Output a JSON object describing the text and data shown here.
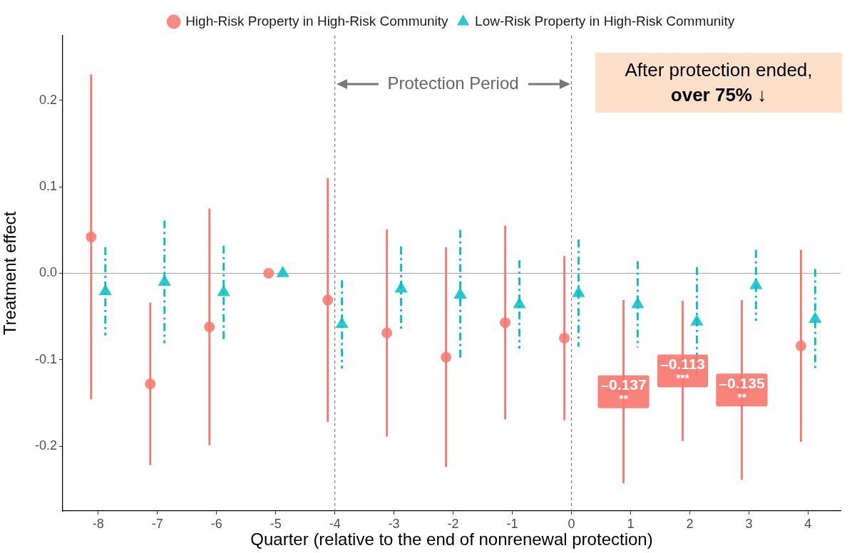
{
  "chart_data": {
    "type": "scatter",
    "xlabel": "Quarter (relative to the end of nonrenewal protection)",
    "ylabel": "Treatment effect",
    "xlim": [
      -8.6,
      4.55
    ],
    "xticks": [
      -8,
      -7,
      -6,
      -5,
      -4,
      -3,
      -2,
      -1,
      0,
      1,
      2,
      3,
      4
    ],
    "ylim": [
      -0.275,
      0.275
    ],
    "yticks": [
      -0.2,
      -0.1,
      {
        "value": 0,
        "label": "0.0"
      },
      0.1,
      0.2
    ],
    "series": [
      {
        "name": "High-Risk Property in High-Risk Community",
        "color": "#f8766d",
        "marker": "circle",
        "line_style": "solid",
        "x": [
          -8.12,
          -7.12,
          -6.12,
          -5.12,
          -4.12,
          -3.12,
          -2.12,
          -1.12,
          -0.12,
          0.88,
          1.88,
          2.88,
          3.88
        ],
        "values": [
          0.042,
          -0.128,
          -0.062,
          0,
          -0.031,
          -0.069,
          -0.097,
          -0.057,
          -0.075,
          -0.137,
          -0.113,
          -0.135,
          -0.084
        ],
        "errors": [
          0.188,
          0.094,
          0.137,
          null,
          0.141,
          0.12,
          0.127,
          0.112,
          0.095,
          0.106,
          0.081,
          0.104,
          0.111
        ],
        "value_labels": [
          null,
          null,
          null,
          null,
          null,
          null,
          null,
          null,
          null,
          "–0.137\n**",
          "–0.113\n***",
          "–0.135\n**",
          null
        ]
      },
      {
        "name": "Low-Risk Property in High-Risk Community",
        "color": "#00bfc4",
        "marker": "triangle",
        "line_style": "dashed",
        "x": [
          -7.88,
          -6.88,
          -5.88,
          -4.88,
          -3.88,
          -2.88,
          -1.88,
          -0.88,
          0.12,
          1.12,
          2.12,
          3.12,
          4.12
        ],
        "values": [
          -0.021,
          -0.01,
          -0.022,
          0,
          -0.059,
          -0.018,
          -0.025,
          -0.036,
          -0.023,
          -0.036,
          -0.056,
          -0.014,
          -0.053
        ],
        "errors": [
          0.051,
          0.071,
          0.054,
          null,
          0.051,
          0.049,
          0.075,
          0.051,
          0.062,
          0.05,
          0.063,
          0.041,
          0.058
        ]
      }
    ],
    "ref_lines": [
      {
        "axis": "y",
        "value": 0,
        "color": "#a6a6a6"
      },
      {
        "axis": "x",
        "value": -4,
        "color": "#7f7f7f",
        "line_style": "dashed"
      },
      {
        "axis": "x",
        "value": 0,
        "color": "#7f7f7f",
        "line_style": "dashed"
      }
    ],
    "annotations": [
      "Protection Period",
      "After protection ended,\nover 75% ↓"
    ],
    "grid": false,
    "legend": "top"
  }
}
